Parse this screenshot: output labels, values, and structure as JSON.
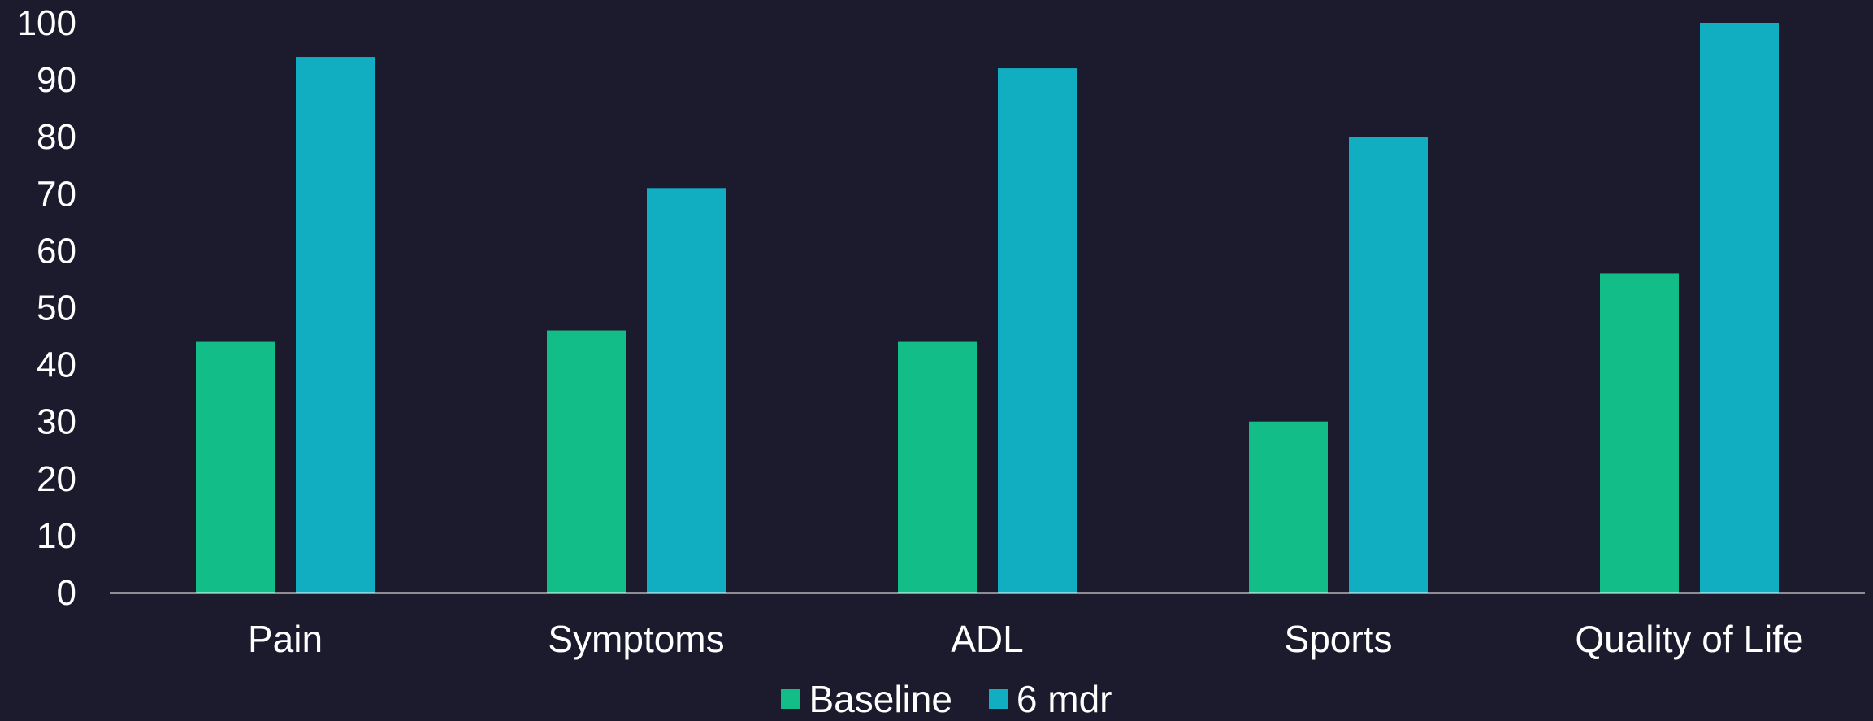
{
  "colors": {
    "background": "#1c1b2e",
    "text": "#ffffff",
    "axis": "#ffffff"
  },
  "chart_data": {
    "type": "bar",
    "title": "",
    "xlabel": "",
    "ylabel": "",
    "ylim": [
      0,
      100
    ],
    "yticks": [
      "0",
      "10",
      "20",
      "30",
      "40",
      "50",
      "60",
      "70",
      "80",
      "90",
      "100"
    ],
    "categories": [
      "Pain",
      "Symptoms",
      "ADL",
      "Sports",
      "Quality of Life"
    ],
    "series": [
      {
        "name": "Baseline",
        "color": "#13bd87",
        "values": [
          44,
          46,
          44,
          30,
          56
        ]
      },
      {
        "name": "6 mdr",
        "color": "#11adc1",
        "values": [
          94,
          71,
          92,
          80,
          100
        ]
      }
    ],
    "grid": false,
    "legend_position": "bottom-center"
  }
}
